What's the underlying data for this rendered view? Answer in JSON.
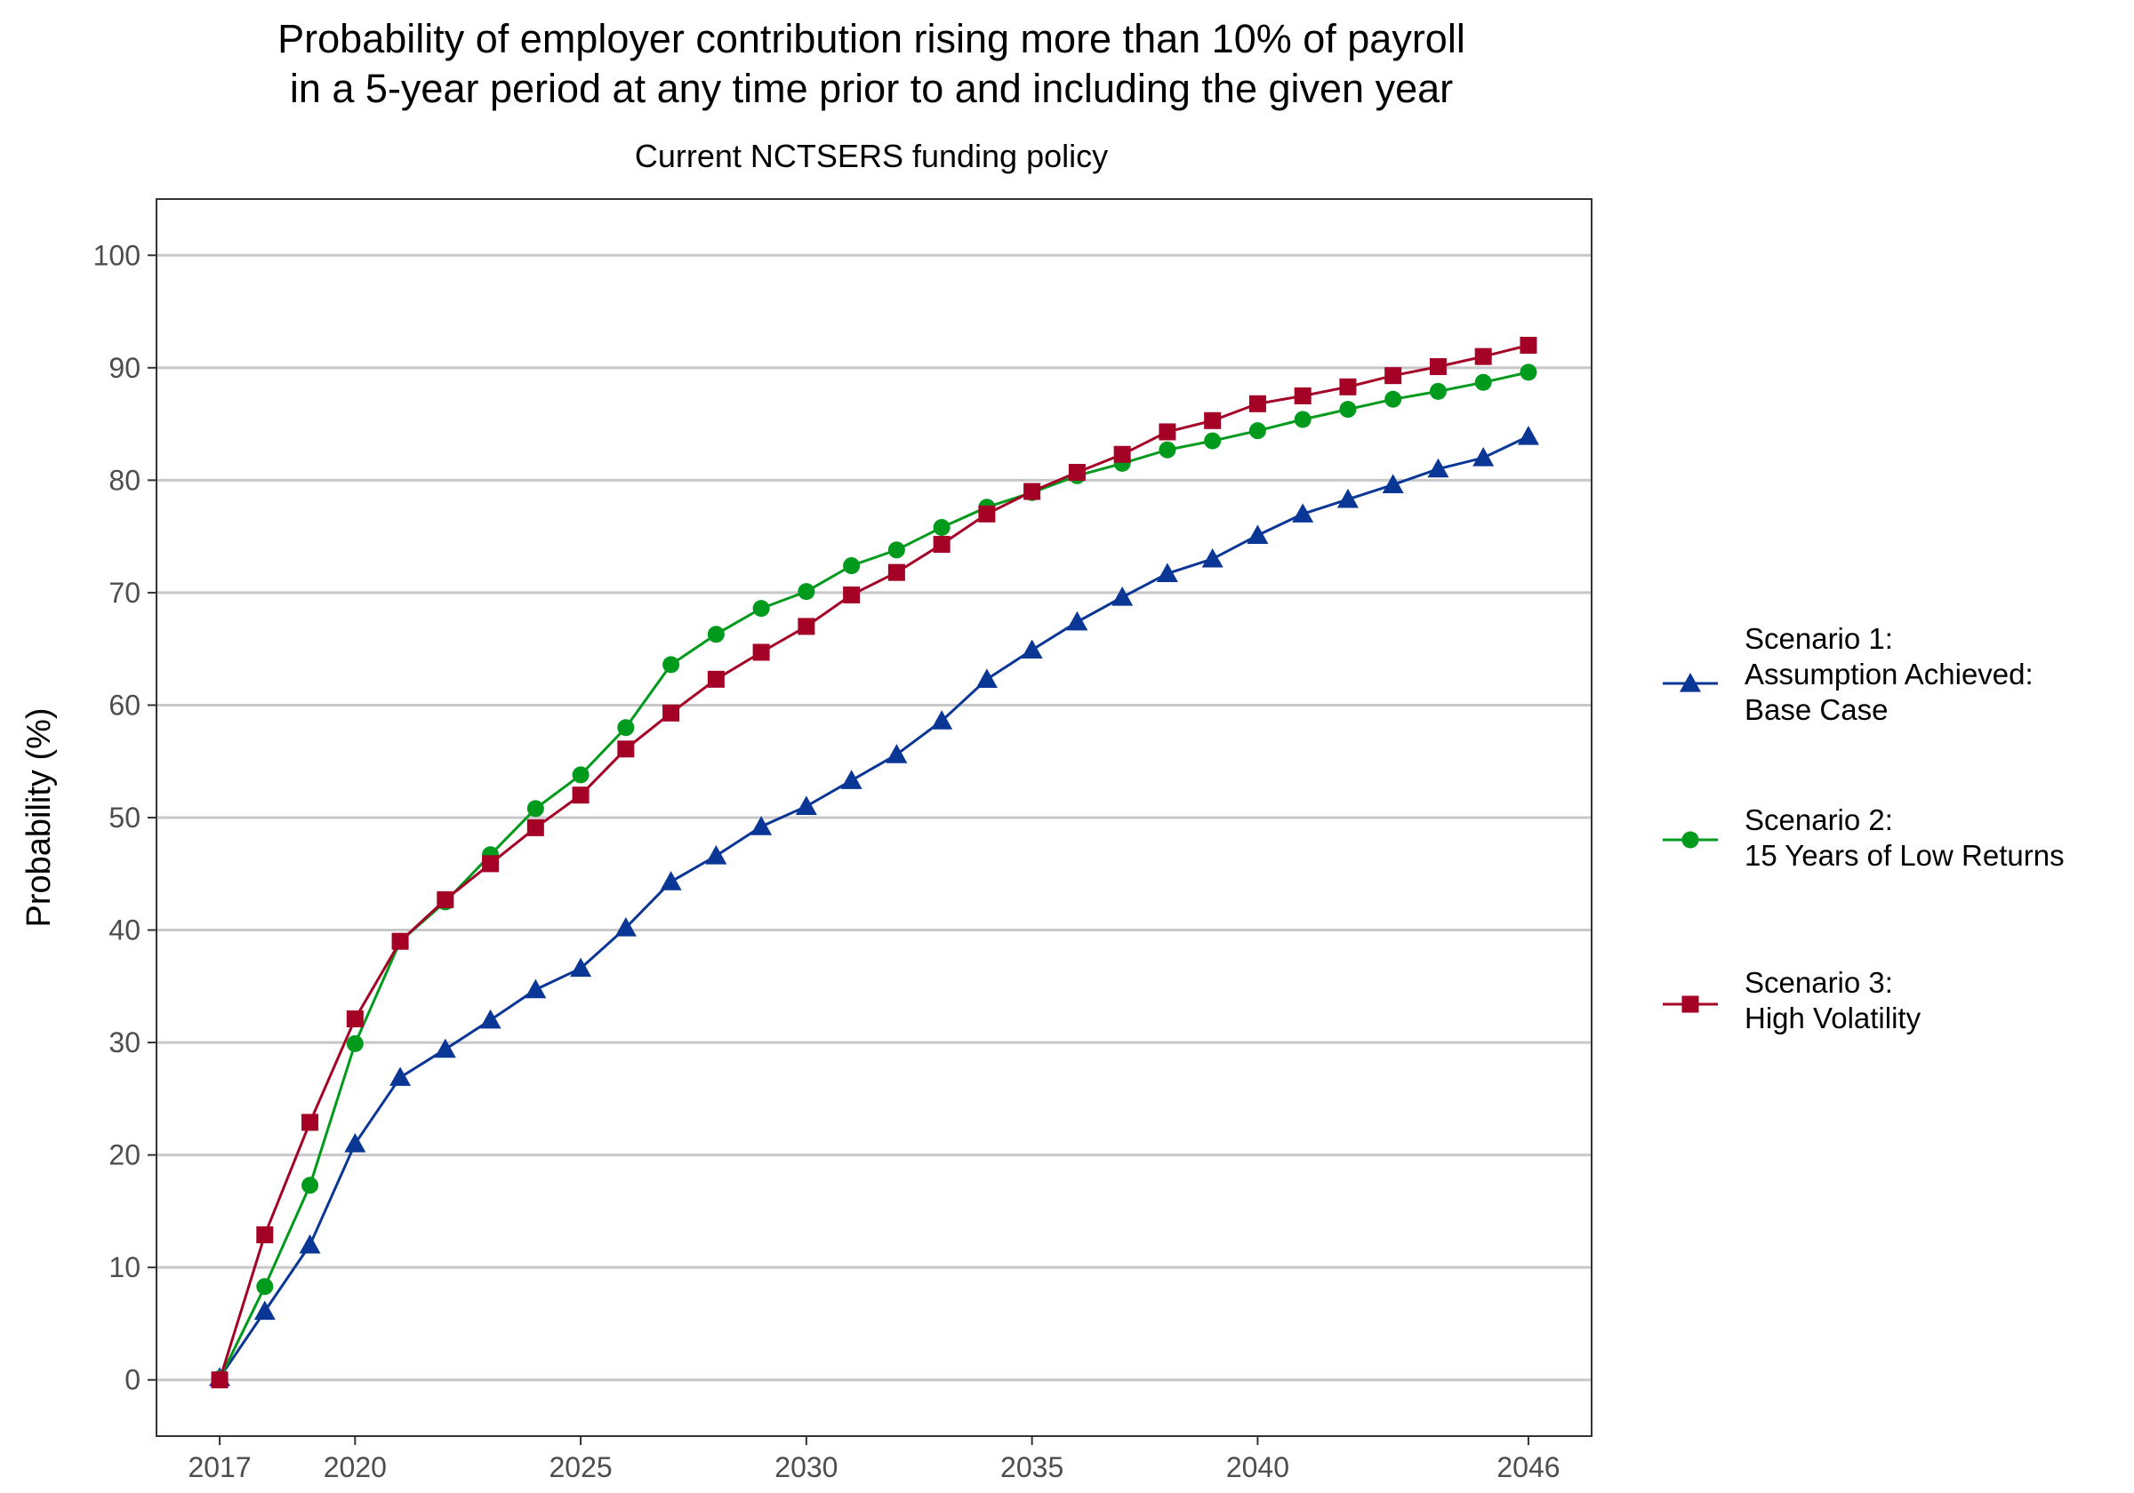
{
  "chart_data": {
    "type": "line",
    "title_line1": "Probability of employer contribution rising more than 10% of payroll",
    "title_line2": "in a 5-year period at any time prior to and including the given year",
    "subtitle": "Current NCTSERS funding policy",
    "xlabel": "",
    "ylabel": "Probability (%)",
    "xlim": [
      2015.6,
      2047.4
    ],
    "ylim": [
      -5,
      105
    ],
    "x_ticks": [
      2017,
      2020,
      2025,
      2030,
      2035,
      2040,
      2046
    ],
    "y_ticks": [
      0,
      10,
      20,
      30,
      40,
      50,
      60,
      70,
      80,
      90,
      100
    ],
    "grid": "horizontal",
    "legend_position": "right",
    "x": [
      2017,
      2018,
      2019,
      2020,
      2021,
      2022,
      2023,
      2024,
      2025,
      2026,
      2027,
      2028,
      2029,
      2030,
      2031,
      2032,
      2033,
      2034,
      2035,
      2036,
      2037,
      2038,
      2039,
      2040,
      2041,
      2042,
      2043,
      2044,
      2045,
      2046
    ],
    "series": [
      {
        "name": "Scenario 1:\nAssumption Achieved:\nBase Case",
        "color": "#0a3696",
        "marker": "triangle",
        "values": [
          0.2,
          6.1,
          12.0,
          21.0,
          26.9,
          29.4,
          32.0,
          34.7,
          36.6,
          40.2,
          44.3,
          46.6,
          49.2,
          51.0,
          53.3,
          55.6,
          58.6,
          62.3,
          64.9,
          67.4,
          69.6,
          71.7,
          73.0,
          75.1,
          77.0,
          78.3,
          79.6,
          81.0,
          82.0,
          83.9
        ]
      },
      {
        "name": "Scenario 2:\n15 Years of Low Returns",
        "color": "#009a1c",
        "marker": "circle",
        "values": [
          0.1,
          8.3,
          17.3,
          29.9,
          39.0,
          42.5,
          46.7,
          50.8,
          53.8,
          58.0,
          63.6,
          66.3,
          68.6,
          70.1,
          72.4,
          73.8,
          75.8,
          77.6,
          78.9,
          80.4,
          81.5,
          82.7,
          83.5,
          84.4,
          85.4,
          86.3,
          87.2,
          87.9,
          88.7,
          89.6
        ]
      },
      {
        "name": "Scenario 3:\nHigh Volatility",
        "color": "#a50026",
        "marker": "square",
        "values": [
          0.0,
          12.9,
          22.9,
          32.1,
          39.0,
          42.7,
          45.9,
          49.1,
          52.0,
          56.1,
          59.3,
          62.3,
          64.7,
          67.0,
          69.8,
          71.8,
          74.3,
          77.0,
          79.0,
          80.7,
          82.3,
          84.3,
          85.3,
          86.8,
          87.5,
          88.3,
          89.3,
          90.1,
          91.0,
          92.0
        ]
      }
    ]
  }
}
